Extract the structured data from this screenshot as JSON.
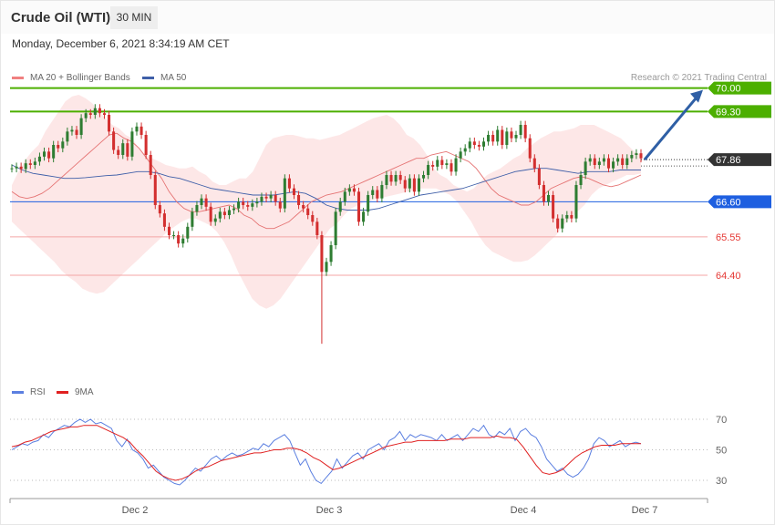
{
  "header": {
    "title": "Crude Oil (WTI)",
    "timeframe": "30 MIN"
  },
  "timestamp": "Monday, December 6, 2021 8:34:19 AM CET",
  "legend": {
    "bollinger": "MA 20 + Bollinger Bands",
    "ma50": "MA 50"
  },
  "credit": "Research © 2021 Trading Central",
  "rsi_legend": {
    "rsi": "RSI",
    "ma": "9MA"
  },
  "colors": {
    "bull": "#2e7d32",
    "bear": "#d32f2f",
    "band_fill": "#fde4e4",
    "ma20": "#e57373",
    "ma50": "#3f5fa8",
    "resistance": "#4caf00",
    "support_blue": "#1e5fe0",
    "support_red": "#f4a6a6",
    "current": "#333333",
    "rsi": "#5b7fe0",
    "rsi_ma": "#e02020",
    "arrow": "#2f5fa5"
  },
  "chart_data": [
    {
      "type": "candlestick",
      "title": "Crude Oil (WTI)",
      "timeframe": "30 MIN",
      "x_ticks": [
        "Dec 2",
        "Dec 3",
        "Dec 4",
        "Dec 7"
      ],
      "ylim": [
        62.0,
        70.4
      ],
      "grid": false,
      "legend_position": "top-left",
      "levels": [
        {
          "value": 70.0,
          "label": "70.00",
          "kind": "resistance"
        },
        {
          "value": 69.3,
          "label": "69.30",
          "kind": "resistance"
        },
        {
          "value": 67.86,
          "label": "67.86",
          "kind": "current"
        },
        {
          "value": 66.6,
          "label": "66.60",
          "kind": "support_blue"
        },
        {
          "value": 65.55,
          "label": "65.55",
          "kind": "support_red"
        },
        {
          "value": 64.4,
          "label": "64.40",
          "kind": "support_red"
        }
      ],
      "target_arrow": {
        "from": 67.86,
        "to": 70.0
      },
      "close": [
        67.6,
        67.65,
        67.58,
        67.75,
        67.7,
        67.8,
        67.95,
        68.1,
        67.9,
        68.3,
        68.2,
        68.4,
        68.7,
        68.75,
        68.6,
        69.1,
        69.25,
        69.2,
        69.4,
        69.25,
        69.2,
        68.7,
        68.15,
        68.0,
        68.35,
        67.95,
        68.7,
        68.85,
        68.6,
        68.0,
        67.4,
        66.5,
        66.25,
        65.85,
        65.6,
        65.6,
        65.35,
        65.5,
        65.85,
        66.3,
        66.5,
        66.7,
        66.45,
        66.0,
        66.1,
        66.3,
        66.2,
        66.35,
        66.4,
        66.6,
        66.5,
        66.45,
        66.55,
        66.6,
        66.75,
        66.7,
        66.8,
        66.6,
        66.4,
        67.3,
        67.0,
        66.8,
        66.5,
        66.4,
        66.2,
        66.0,
        65.6,
        64.5,
        64.8,
        65.3,
        66.3,
        66.6,
        66.9,
        67.0,
        66.9,
        66.0,
        66.3,
        66.8,
        66.95,
        66.7,
        67.1,
        67.4,
        67.2,
        67.4,
        67.25,
        67.0,
        67.3,
        66.9,
        67.3,
        67.4,
        67.7,
        67.65,
        67.85,
        67.7,
        67.75,
        67.5,
        67.9,
        68.1,
        68.2,
        68.4,
        68.3,
        68.25,
        68.4,
        68.6,
        68.4,
        68.75,
        68.3,
        68.7,
        68.5,
        68.6,
        68.9,
        68.5,
        67.9,
        67.6,
        67.1,
        66.6,
        66.8,
        66.1,
        65.8,
        66.1,
        66.2,
        66.1,
        67.1,
        67.4,
        67.8,
        67.9,
        67.7,
        67.8,
        67.9,
        67.6,
        67.8,
        67.9,
        67.7,
        67.9,
        68.0,
        68.05,
        67.9
      ],
      "bollinger_upper": [
        67.1,
        67.5,
        67.85,
        68.1,
        68.3,
        68.7,
        69.0,
        69.3,
        69.6,
        69.75,
        69.8,
        69.7,
        69.55,
        69.3,
        69.1,
        68.9,
        68.8,
        68.6,
        68.5,
        68.2,
        68.0,
        67.9,
        67.8,
        67.7,
        67.65,
        67.6,
        67.6,
        67.65,
        67.5,
        67.4,
        67.2,
        67.1,
        67.1,
        67.2,
        67.3,
        67.3,
        67.5,
        67.9,
        68.3,
        68.5,
        68.55,
        68.6,
        68.6,
        68.55,
        68.5,
        68.5,
        68.45,
        68.5,
        68.55,
        68.6,
        68.7,
        68.8,
        68.9,
        69.0,
        69.1,
        69.15,
        69.2,
        69.1,
        68.9,
        68.6,
        68.5,
        68.3,
        68.0,
        67.6,
        67.4,
        67.3,
        67.1,
        67.0,
        66.9,
        67.0,
        67.2,
        67.4,
        67.5,
        67.6,
        67.75,
        67.9,
        68.0,
        68.2,
        68.35,
        68.5,
        68.6,
        68.7,
        68.7,
        68.75,
        68.8,
        68.9,
        68.9,
        68.9,
        68.8,
        68.7,
        68.6,
        68.5,
        68.3,
        68.1,
        68.0
      ],
      "bollinger_lower": [
        66.0,
        65.8,
        65.6,
        65.4,
        65.2,
        65.0,
        64.8,
        64.55,
        64.35,
        64.2,
        64.0,
        63.9,
        63.85,
        63.9,
        64.1,
        64.3,
        64.5,
        64.7,
        64.9,
        65.1,
        65.3,
        65.5,
        65.7,
        65.85,
        66.0,
        66.1,
        66.1,
        66.0,
        65.9,
        65.7,
        65.4,
        65.0,
        64.5,
        64.1,
        63.7,
        63.5,
        63.4,
        63.5,
        63.7,
        64.0,
        64.3,
        64.6,
        64.9,
        65.2,
        65.5,
        65.8,
        65.95,
        66.2,
        66.4,
        66.5,
        66.6,
        66.65,
        66.7,
        66.75,
        66.8,
        66.85,
        66.9,
        66.95,
        67.0,
        67.0,
        67.0,
        66.9,
        66.8,
        66.6,
        66.3,
        66.0,
        65.6,
        65.3,
        65.1,
        65.0,
        64.9,
        64.8,
        64.8,
        64.85,
        65.0,
        65.2,
        65.4,
        65.6,
        65.9,
        66.1,
        66.3,
        66.5,
        66.8,
        67.0,
        67.1,
        67.2,
        67.3,
        67.4,
        67.4,
        67.45
      ],
      "ma20": [
        66.9,
        66.75,
        66.7,
        66.75,
        66.85,
        67.0,
        67.2,
        67.4,
        67.6,
        67.8,
        68.0,
        68.2,
        68.4,
        68.6,
        68.65,
        68.5,
        68.4,
        68.2,
        67.9,
        67.6,
        67.3,
        66.9,
        66.6,
        66.4,
        66.3,
        66.3,
        66.35,
        66.4,
        66.45,
        66.5,
        66.4,
        66.2,
        66.1,
        65.9,
        65.8,
        65.8,
        65.9,
        66.0,
        66.2,
        66.4,
        66.6,
        66.7,
        66.8,
        66.85,
        66.9,
        67.0,
        67.1,
        67.2,
        67.3,
        67.4,
        67.5,
        67.6,
        67.7,
        67.8,
        67.9,
        67.9,
        68.0,
        68.05,
        68.1,
        68.0,
        67.9,
        67.8,
        67.6,
        67.3,
        67.0,
        66.8,
        66.7,
        66.6,
        66.5,
        66.5,
        66.6,
        66.8,
        67.0,
        67.1,
        67.2,
        67.3,
        67.35,
        67.3,
        67.2,
        67.1,
        67.05,
        67.1,
        67.2,
        67.3,
        67.4
      ],
      "ma50": [
        67.7,
        67.55,
        67.45,
        67.4,
        67.35,
        67.3,
        67.3,
        67.32,
        67.35,
        67.38,
        67.4,
        67.45,
        67.5,
        67.5,
        67.45,
        67.35,
        67.3,
        67.2,
        67.1,
        67.0,
        66.95,
        66.9,
        66.85,
        66.8,
        66.8,
        66.8,
        66.85,
        66.9,
        66.85,
        66.7,
        66.5,
        66.4,
        66.35,
        66.35,
        66.35,
        66.4,
        66.5,
        66.6,
        66.7,
        66.8,
        66.85,
        66.9,
        66.95,
        67.0,
        67.1,
        67.2,
        67.3,
        67.4,
        67.5,
        67.55,
        67.6,
        67.6,
        67.55,
        67.5,
        67.45,
        67.5,
        67.5,
        67.5,
        67.55,
        67.55,
        67.55
      ]
    },
    {
      "type": "line",
      "name": "RSI",
      "ylim": [
        20,
        80
      ],
      "y_ticks": [
        30,
        50,
        70
      ],
      "series": [
        {
          "name": "RSI",
          "values": [
            50,
            52,
            54,
            53,
            55,
            56,
            60,
            58,
            62,
            64,
            66,
            65,
            68,
            70,
            68,
            70,
            67,
            68,
            66,
            64,
            56,
            52,
            57,
            50,
            48,
            44,
            38,
            40,
            36,
            32,
            30,
            28,
            27,
            30,
            34,
            38,
            36,
            40,
            44,
            46,
            43,
            46,
            48,
            46,
            47,
            49,
            51,
            50,
            54,
            52,
            56,
            58,
            60,
            56,
            48,
            40,
            44,
            36,
            30,
            28,
            32,
            36,
            44,
            38,
            42,
            46,
            48,
            44,
            50,
            52,
            54,
            50,
            56,
            58,
            62,
            56,
            60,
            58,
            60,
            59,
            58,
            56,
            60,
            56,
            58,
            60,
            56,
            60,
            64,
            62,
            66,
            60,
            58,
            62,
            60,
            64,
            56,
            62,
            64,
            60,
            58,
            52,
            44,
            40,
            36,
            38,
            34,
            32,
            34,
            38,
            44,
            54,
            58,
            56,
            52,
            54,
            56,
            52,
            54,
            55,
            54
          ]
        },
        {
          "name": "9MA",
          "values": [
            52,
            53,
            55,
            56,
            58,
            60,
            62,
            63,
            64,
            65,
            65,
            66,
            66,
            66,
            64,
            62,
            60,
            58,
            55,
            50,
            46,
            41,
            36,
            33,
            31,
            30,
            31,
            33,
            36,
            38,
            39,
            41,
            43,
            44,
            45,
            46,
            47,
            48,
            48,
            49,
            50,
            50,
            51,
            51,
            50,
            48,
            45,
            43,
            40,
            37,
            38,
            40,
            42,
            44,
            46,
            48,
            50,
            52,
            53,
            54,
            55,
            55,
            56,
            56,
            56,
            56,
            56,
            57,
            57,
            57,
            58,
            58,
            58,
            58,
            59,
            58,
            58,
            57,
            52,
            46,
            40,
            35,
            34,
            35,
            37,
            41,
            45,
            48,
            50,
            52,
            53,
            53,
            53,
            54,
            54,
            54,
            54
          ]
        }
      ]
    }
  ]
}
